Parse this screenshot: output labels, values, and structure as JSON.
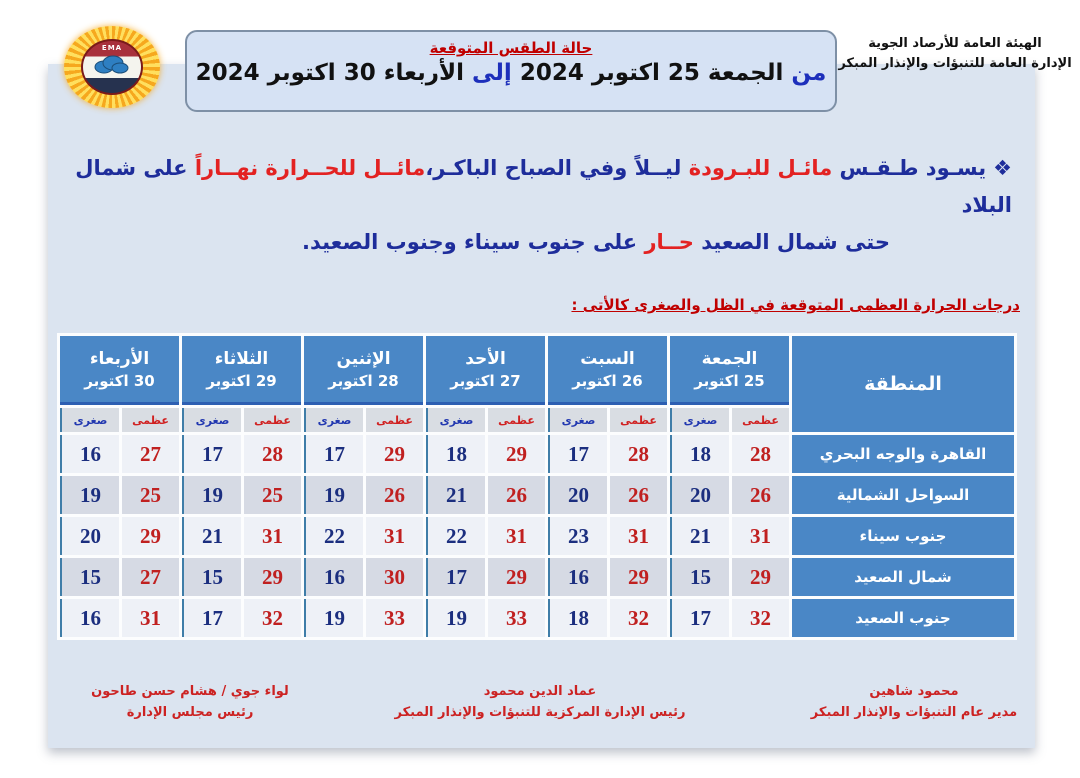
{
  "org": {
    "logo_text": "EMA",
    "line1": "الهيئة العامة للأرصاد الجوية",
    "line2": "الإدارة العامة للتنبؤات والإنذار المبكر"
  },
  "header_box": {
    "title": "حالة الطقس المتوقعة",
    "from_label": "من",
    "from_text": "الجمعة 25 اكتوبر 2024",
    "to_label": "إلى",
    "to_text": "الأربعاء 30 اكتوبر 2024"
  },
  "notice": {
    "bullet": "❖",
    "line1": [
      {
        "t": "يسـود طـقـس ",
        "c": "navy"
      },
      {
        "t": "مائـل للبـرودة ",
        "c": "red"
      },
      {
        "t": "ليــلاً وفي الصباح الباكـر،",
        "c": "navy"
      },
      {
        "t": "مائــل للحــرارة نهــاراً ",
        "c": "red"
      },
      {
        "t": "على شمال البلاد",
        "c": "navy"
      }
    ],
    "line2": [
      {
        "t": "حتى شمال الصعيد ",
        "c": "navy"
      },
      {
        "t": "حــار ",
        "c": "red"
      },
      {
        "t": "على جنوب سيناء وجنوب الصعيد.",
        "c": "navy"
      }
    ]
  },
  "table": {
    "title": "درجات الحرارة العظمى المتوقعة في الظل والصغرى كالأتى :",
    "region_header": "المنطقة",
    "max_label": "عظمى",
    "min_label": "صغرى",
    "days": [
      {
        "name": "الجمعة",
        "date": "25 اكتوبر"
      },
      {
        "name": "السبت",
        "date": "26 اكتوبر"
      },
      {
        "name": "الأحد",
        "date": "27 اكتوبر"
      },
      {
        "name": "الإثنين",
        "date": "28 اكتوبر"
      },
      {
        "name": "الثلاثاء",
        "date": "29 اكتوبر"
      },
      {
        "name": "الأربعاء",
        "date": "30 اكتوبر"
      }
    ],
    "rows": [
      {
        "region": "القاهرة والوجه البحري",
        "temps": [
          {
            "max": 28,
            "min": 18
          },
          {
            "max": 28,
            "min": 17
          },
          {
            "max": 29,
            "min": 18
          },
          {
            "max": 29,
            "min": 17
          },
          {
            "max": 28,
            "min": 17
          },
          {
            "max": 27,
            "min": 16
          }
        ]
      },
      {
        "region": "السواحل الشمالية",
        "temps": [
          {
            "max": 26,
            "min": 20
          },
          {
            "max": 26,
            "min": 20
          },
          {
            "max": 26,
            "min": 21
          },
          {
            "max": 26,
            "min": 19
          },
          {
            "max": 25,
            "min": 19
          },
          {
            "max": 25,
            "min": 19
          }
        ]
      },
      {
        "region": "جنوب سيناء",
        "temps": [
          {
            "max": 31,
            "min": 21
          },
          {
            "max": 31,
            "min": 23
          },
          {
            "max": 31,
            "min": 22
          },
          {
            "max": 31,
            "min": 22
          },
          {
            "max": 31,
            "min": 21
          },
          {
            "max": 29,
            "min": 20
          }
        ]
      },
      {
        "region": "شمال الصعيد",
        "temps": [
          {
            "max": 29,
            "min": 15
          },
          {
            "max": 29,
            "min": 16
          },
          {
            "max": 29,
            "min": 17
          },
          {
            "max": 30,
            "min": 16
          },
          {
            "max": 29,
            "min": 15
          },
          {
            "max": 27,
            "min": 15
          }
        ]
      },
      {
        "region": "جنوب الصعيد",
        "temps": [
          {
            "max": 32,
            "min": 17
          },
          {
            "max": 32,
            "min": 18
          },
          {
            "max": 33,
            "min": 19
          },
          {
            "max": 33,
            "min": 19
          },
          {
            "max": 32,
            "min": 17
          },
          {
            "max": 31,
            "min": 16
          }
        ]
      }
    ]
  },
  "signatures": [
    {
      "name": "محمود شاهين",
      "title": "مدير عام التنبؤات والإنذار المبكر"
    },
    {
      "name": "عماد الدين محمود",
      "title": "رئيس الإدارة المركزية للتنبؤات والإنذار المبكر"
    },
    {
      "name": "لواء جوي / هشام حسن طاحون",
      "title": "رئيس مجلس الإدارة"
    }
  ],
  "colors": {
    "card_bg": "#dbe4f0",
    "header_cell_blue": "#4a87c6",
    "max_red": "#c02020",
    "min_navy": "#1b2e7f",
    "notice_navy": "#1e2d9b",
    "notice_red": "#e32222",
    "title_red": "#c00000",
    "signature_red": "#cc2222",
    "group_divider": "#3f7da8"
  }
}
